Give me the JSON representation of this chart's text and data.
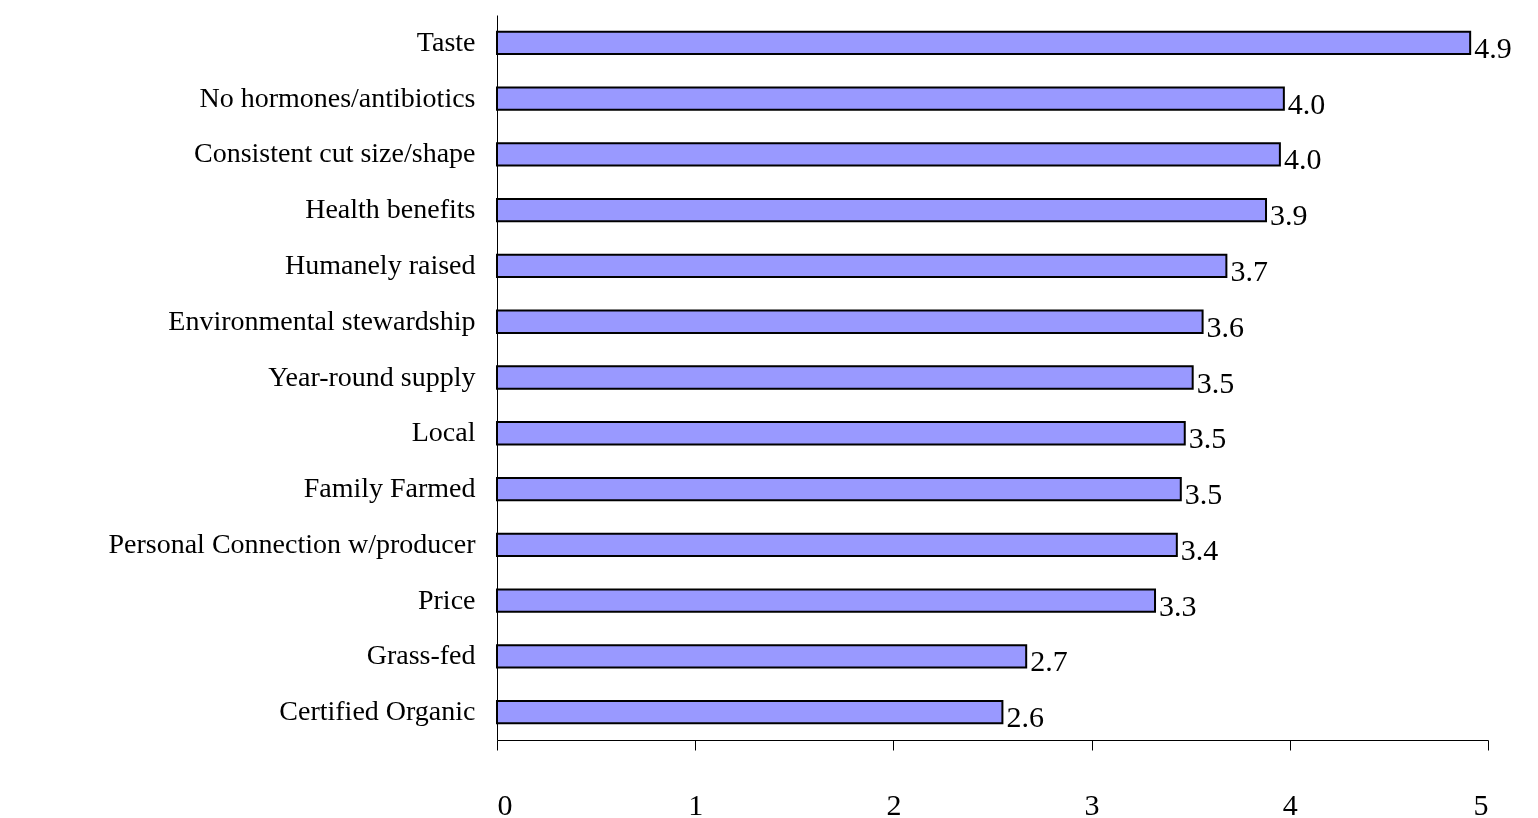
{
  "chart_data": {
    "type": "bar",
    "orientation": "horizontal",
    "categories": [
      "Taste",
      "No hormones/antibiotics",
      "Consistent cut size/shape",
      "Health benefits",
      "Humanely raised",
      "Environmental stewardship",
      "Year-round supply",
      "Local",
      "Family Farmed",
      "Personal Connection w/producer",
      "Price",
      "Grass-fed",
      "Certified Organic"
    ],
    "values": [
      4.91,
      3.97,
      3.95,
      3.88,
      3.68,
      3.56,
      3.51,
      3.47,
      3.45,
      3.43,
      3.32,
      2.67,
      2.55
    ],
    "value_labels": [
      "4.9",
      "4.0",
      "4.0",
      "3.9",
      "3.7",
      "3.6",
      "3.5",
      "3.5",
      "3.5",
      "3.4",
      "3.3",
      "2.7",
      "2.6"
    ],
    "color": "#9999ff",
    "xlim": [
      0,
      5
    ],
    "xticks": [
      0,
      1,
      2,
      3,
      4,
      5
    ],
    "grid": false
  }
}
